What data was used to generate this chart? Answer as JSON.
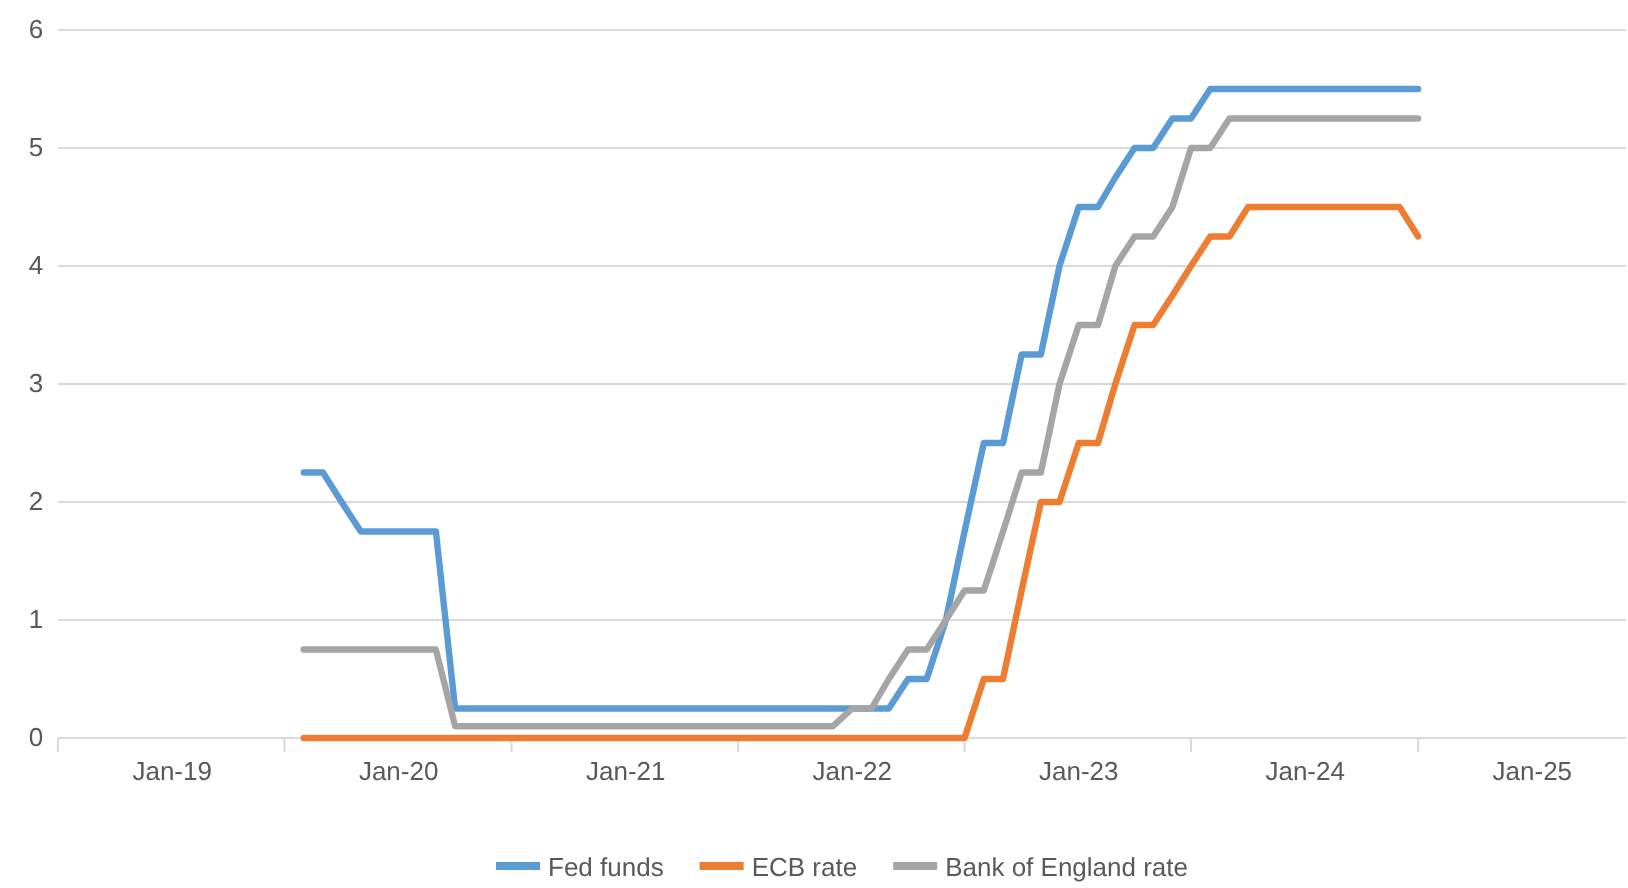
{
  "chart_data": {
    "type": "line",
    "x": [
      "2019-08",
      "2019-09",
      "2019-10",
      "2019-11",
      "2019-12",
      "2020-01",
      "2020-02",
      "2020-03",
      "2020-04",
      "2020-05",
      "2020-06",
      "2020-07",
      "2020-08",
      "2020-09",
      "2020-10",
      "2020-11",
      "2020-12",
      "2021-01",
      "2021-02",
      "2021-03",
      "2021-04",
      "2021-05",
      "2021-06",
      "2021-07",
      "2021-08",
      "2021-09",
      "2021-10",
      "2021-11",
      "2021-12",
      "2022-01",
      "2022-02",
      "2022-03",
      "2022-04",
      "2022-05",
      "2022-06",
      "2022-07",
      "2022-08",
      "2022-09",
      "2022-10",
      "2022-11",
      "2022-12",
      "2023-01",
      "2023-02",
      "2023-03",
      "2023-04",
      "2023-05",
      "2023-06",
      "2023-07",
      "2023-08",
      "2023-09",
      "2023-10",
      "2023-11",
      "2023-12",
      "2024-01",
      "2024-02",
      "2024-03",
      "2024-04",
      "2024-05",
      "2024-06",
      "2024-07"
    ],
    "series": [
      {
        "name": "Fed funds",
        "color": "#5b9bd5",
        "values": [
          2.25,
          2.25,
          2.0,
          1.75,
          1.75,
          1.75,
          1.75,
          1.75,
          0.25,
          0.25,
          0.25,
          0.25,
          0.25,
          0.25,
          0.25,
          0.25,
          0.25,
          0.25,
          0.25,
          0.25,
          0.25,
          0.25,
          0.25,
          0.25,
          0.25,
          0.25,
          0.25,
          0.25,
          0.25,
          0.25,
          0.25,
          0.25,
          0.5,
          0.5,
          1.0,
          1.75,
          2.5,
          2.5,
          3.25,
          3.25,
          4.0,
          4.5,
          4.5,
          4.75,
          5.0,
          5.0,
          5.25,
          5.25,
          5.5,
          5.5,
          5.5,
          5.5,
          5.5,
          5.5,
          5.5,
          5.5,
          5.5,
          5.5,
          5.5,
          5.5
        ]
      },
      {
        "name": "ECB rate",
        "color": "#ed7d31",
        "values": [
          0,
          0,
          0,
          0,
          0,
          0,
          0,
          0,
          0,
          0,
          0,
          0,
          0,
          0,
          0,
          0,
          0,
          0,
          0,
          0,
          0,
          0,
          0,
          0,
          0,
          0,
          0,
          0,
          0,
          0,
          0,
          0,
          0,
          0,
          0,
          0,
          0.5,
          0.5,
          1.25,
          2.0,
          2.0,
          2.5,
          2.5,
          3.0,
          3.5,
          3.5,
          3.75,
          4.0,
          4.25,
          4.25,
          4.5,
          4.5,
          4.5,
          4.5,
          4.5,
          4.5,
          4.5,
          4.5,
          4.5,
          4.25
        ]
      },
      {
        "name": "Bank of England rate",
        "color": "#a5a5a5",
        "values": [
          0.75,
          0.75,
          0.75,
          0.75,
          0.75,
          0.75,
          0.75,
          0.75,
          0.1,
          0.1,
          0.1,
          0.1,
          0.1,
          0.1,
          0.1,
          0.1,
          0.1,
          0.1,
          0.1,
          0.1,
          0.1,
          0.1,
          0.1,
          0.1,
          0.1,
          0.1,
          0.1,
          0.1,
          0.1,
          0.25,
          0.25,
          0.5,
          0.75,
          0.75,
          1.0,
          1.25,
          1.25,
          1.75,
          2.25,
          2.25,
          3.0,
          3.5,
          3.5,
          4.0,
          4.25,
          4.25,
          4.5,
          5.0,
          5.0,
          5.25,
          5.25,
          5.25,
          5.25,
          5.25,
          5.25,
          5.25,
          5.25,
          5.25,
          5.25,
          5.25
        ]
      }
    ],
    "xlim": [
      "2018-07",
      "2025-06"
    ],
    "xticks": [
      {
        "value": "2018-07",
        "label": null
      },
      {
        "value": "2019-01",
        "label": "Jan-19"
      },
      {
        "value": "2019-07",
        "label": null
      },
      {
        "value": "2020-01",
        "label": "Jan-20"
      },
      {
        "value": "2020-07",
        "label": null
      },
      {
        "value": "2021-01",
        "label": "Jan-21"
      },
      {
        "value": "2021-07",
        "label": null
      },
      {
        "value": "2022-01",
        "label": "Jan-22"
      },
      {
        "value": "2022-07",
        "label": null
      },
      {
        "value": "2023-01",
        "label": "Jan-23"
      },
      {
        "value": "2023-07",
        "label": null
      },
      {
        "value": "2024-01",
        "label": "Jan-24"
      },
      {
        "value": "2024-07",
        "label": null
      },
      {
        "value": "2025-01",
        "label": "Jan-25"
      }
    ],
    "ylim": [
      0,
      6
    ],
    "yticks": [
      0,
      1,
      2,
      3,
      4,
      5,
      6
    ],
    "grid": "y",
    "legend": "bottom",
    "marker": "none",
    "line_style": "solid"
  }
}
